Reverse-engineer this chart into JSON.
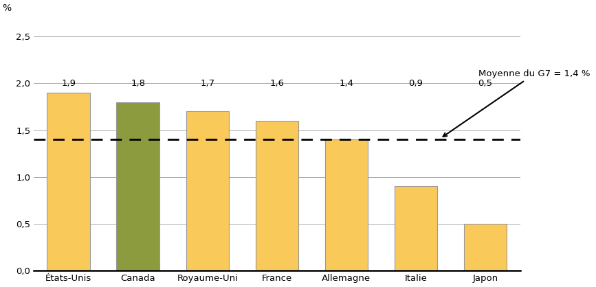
{
  "categories": [
    "États-Unis",
    "Canada",
    "Royaume-Uni",
    "France",
    "Allemagne",
    "Italie",
    "Japon"
  ],
  "values": [
    1.9,
    1.8,
    1.7,
    1.6,
    1.4,
    0.9,
    0.5
  ],
  "bar_colors": [
    "#F9C95A",
    "#8B9B3E",
    "#F9C95A",
    "#F9C95A",
    "#F9C95A",
    "#F9C95A",
    "#F9C95A"
  ],
  "bar_edge_color": "#999999",
  "avg_line_value": 1.4,
  "ylabel": "%",
  "ylim": [
    0.0,
    2.7
  ],
  "yticks": [
    0.0,
    0.5,
    1.0,
    1.5,
    2.0,
    2.5
  ],
  "ytick_labels": [
    "0,0",
    "0,5",
    "1,0",
    "1,5",
    "2,0",
    "2,5"
  ],
  "value_labels": [
    "1,9",
    "1,8",
    "1,7",
    "1,6",
    "1,4",
    "0,9",
    "0,5"
  ],
  "annotation_text": "Moyenne du G7 = 1,4 %",
  "background_color": "#ffffff",
  "grid_color": "#aaaaaa",
  "label_fontsize": 9.5,
  "tick_fontsize": 9.5,
  "ylabel_fontsize": 10
}
